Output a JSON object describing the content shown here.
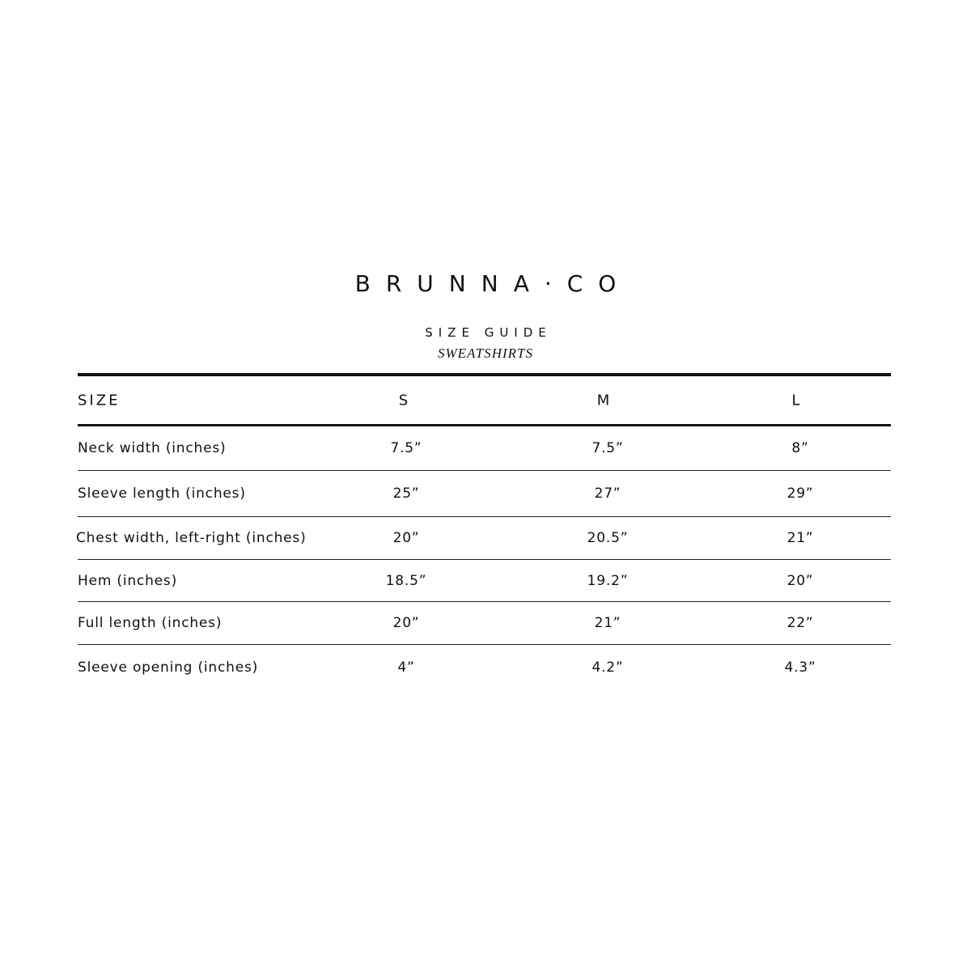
{
  "brand": "BRUNNA·CO",
  "title": "SIZE GUIDE",
  "subtitle": "SWEATSHIRTS",
  "table": {
    "header": [
      "SIZE",
      "S",
      "M",
      "L"
    ],
    "rows": [
      {
        "label": "Neck width (inches)",
        "values": [
          "7.5”",
          "7.5”",
          "8”"
        ]
      },
      {
        "label": "Sleeve length (inches)",
        "values": [
          "25”",
          "27”",
          "29”"
        ]
      },
      {
        "label": "Chest width, left-right (inches)",
        "values": [
          "20”",
          "20.5”",
          "21”"
        ]
      },
      {
        "label": "Hem (inches)",
        "values": [
          "18.5”",
          "19.2”",
          "20”"
        ]
      },
      {
        "label": "Full length (inches)",
        "values": [
          "20”",
          "21”",
          "22”"
        ]
      },
      {
        "label": "Sleeve opening (inches)",
        "values": [
          "4”",
          "4.2”",
          "4.3”"
        ]
      }
    ]
  }
}
